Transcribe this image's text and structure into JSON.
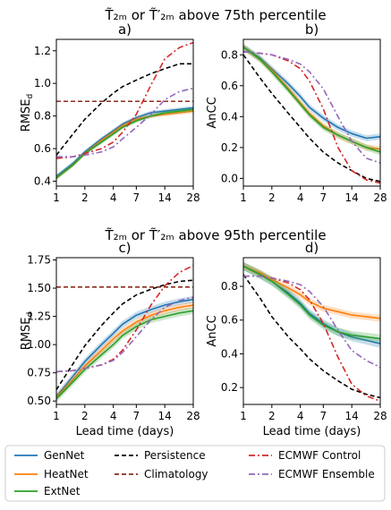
{
  "colors": {
    "genet": "#1f77b4",
    "heatnet": "#ff7f0e",
    "extnet": "#2ca02c",
    "persistence": "#000000",
    "climatology": "#8c2d1e",
    "ecmwf_control": "#d62728",
    "ecmwf_ensemble": "#9467bd"
  },
  "legend": [
    {
      "key": "genet",
      "label": "GenNet",
      "style": "solid"
    },
    {
      "key": "heatnet",
      "label": "HeatNet",
      "style": "solid"
    },
    {
      "key": "extnet",
      "label": "ExtNet",
      "style": "solid"
    },
    {
      "key": "persistence",
      "label": "Persistence",
      "style": "dash"
    },
    {
      "key": "climatology",
      "label": "Climatology",
      "style": "dash"
    },
    {
      "key": "ecmwf_control",
      "label": "ECMWF Control",
      "style": "dashdot"
    },
    {
      "key": "ecmwf_ensemble",
      "label": "ECMWF Ensemble",
      "style": "dashdot"
    }
  ],
  "row_titles": [
    "T̃₂ₘ or T̃′₂ₘ above 75th percentile",
    "T̃₂ₘ or T̃′₂ₘ above 95th percentile"
  ],
  "chart_data": [
    {
      "panel": "a)",
      "type": "line",
      "xscale": "log",
      "xticks": [
        1,
        2,
        4,
        7,
        14,
        28
      ],
      "xlim": [
        1,
        28
      ],
      "xlabel": "",
      "ylabel": "RMSE_d",
      "ylim": [
        0.37,
        1.27
      ],
      "yticks": [
        0.4,
        0.6,
        0.8,
        1.0,
        1.2
      ],
      "x": [
        1,
        1.5,
        2,
        3,
        4,
        5,
        7,
        10,
        14,
        20,
        28
      ],
      "series": [
        {
          "name": "GenNet",
          "key": "genet",
          "values": [
            0.43,
            0.51,
            0.58,
            0.66,
            0.71,
            0.75,
            0.79,
            0.82,
            0.83,
            0.84,
            0.85
          ],
          "band": 0.012
        },
        {
          "name": "HeatNet",
          "key": "heatnet",
          "values": [
            0.42,
            0.5,
            0.57,
            0.65,
            0.7,
            0.74,
            0.78,
            0.8,
            0.81,
            0.82,
            0.83
          ],
          "band": 0.012
        },
        {
          "name": "ExtNet",
          "key": "extnet",
          "values": [
            0.42,
            0.5,
            0.57,
            0.64,
            0.69,
            0.73,
            0.77,
            0.8,
            0.82,
            0.83,
            0.84
          ],
          "band": 0.012
        },
        {
          "name": "Persistence",
          "key": "persistence",
          "values": [
            0.56,
            0.69,
            0.78,
            0.88,
            0.94,
            0.98,
            1.02,
            1.06,
            1.09,
            1.12,
            1.12
          ]
        },
        {
          "name": "Climatology",
          "key": "climatology",
          "values": [
            0.89,
            0.89,
            0.89,
            0.89,
            0.89,
            0.89,
            0.89,
            0.89,
            0.89,
            0.89,
            0.89
          ]
        },
        {
          "name": "ECMWF Control",
          "key": "ecmwf_control",
          "values": [
            0.54,
            0.55,
            0.57,
            0.6,
            0.64,
            0.7,
            0.81,
            0.99,
            1.15,
            1.22,
            1.25
          ]
        },
        {
          "name": "ECMWF Ensemble",
          "key": "ecmwf_ensemble",
          "values": [
            0.55,
            0.55,
            0.56,
            0.58,
            0.61,
            0.66,
            0.73,
            0.81,
            0.9,
            0.95,
            0.97
          ]
        }
      ]
    },
    {
      "panel": "b)",
      "type": "line",
      "xscale": "log",
      "xticks": [
        1,
        2,
        4,
        7,
        14,
        28
      ],
      "xlim": [
        1,
        28
      ],
      "xlabel": "",
      "ylabel": "AnCC",
      "ylim": [
        -0.05,
        0.9
      ],
      "yticks": [
        0.0,
        0.2,
        0.4,
        0.6,
        0.8
      ],
      "x": [
        1,
        1.5,
        2,
        3,
        4,
        5,
        7,
        10,
        14,
        20,
        28
      ],
      "series": [
        {
          "name": "GenNet",
          "key": "genet",
          "values": [
            0.85,
            0.78,
            0.71,
            0.61,
            0.53,
            0.46,
            0.39,
            0.33,
            0.29,
            0.26,
            0.27
          ],
          "band": 0.02
        },
        {
          "name": "HeatNet",
          "key": "heatnet",
          "values": [
            0.85,
            0.77,
            0.7,
            0.58,
            0.49,
            0.42,
            0.34,
            0.28,
            0.24,
            0.2,
            0.19
          ],
          "band": 0.02
        },
        {
          "name": "ExtNet",
          "key": "extnet",
          "values": [
            0.85,
            0.77,
            0.69,
            0.57,
            0.48,
            0.41,
            0.33,
            0.28,
            0.24,
            0.2,
            0.17
          ],
          "band": 0.02
        },
        {
          "name": "Persistence",
          "key": "persistence",
          "values": [
            0.8,
            0.65,
            0.55,
            0.42,
            0.33,
            0.26,
            0.17,
            0.1,
            0.05,
            0.0,
            -0.02
          ]
        },
        {
          "name": "ECMWF Control",
          "key": "ecmwf_control",
          "values": [
            0.82,
            0.81,
            0.8,
            0.76,
            0.71,
            0.63,
            0.45,
            0.2,
            0.05,
            -0.01,
            -0.03
          ]
        },
        {
          "name": "ECMWF Ensemble",
          "key": "ecmwf_ensemble",
          "values": [
            0.82,
            0.81,
            0.8,
            0.77,
            0.74,
            0.69,
            0.58,
            0.4,
            0.24,
            0.13,
            0.1
          ]
        }
      ]
    },
    {
      "panel": "c)",
      "type": "line",
      "xscale": "log",
      "xticks": [
        1,
        2,
        4,
        7,
        14,
        28
      ],
      "xlim": [
        1,
        28
      ],
      "xlabel": "Lead time (days)",
      "ylabel": "RMSE_d",
      "ylim": [
        0.47,
        1.77
      ],
      "yticks": [
        0.5,
        0.75,
        1.0,
        1.25,
        1.5,
        1.75
      ],
      "x": [
        1,
        1.5,
        2,
        3,
        4,
        5,
        7,
        10,
        14,
        20,
        28
      ],
      "series": [
        {
          "name": "GenNet",
          "key": "genet",
          "values": [
            0.54,
            0.72,
            0.85,
            1.0,
            1.1,
            1.18,
            1.26,
            1.31,
            1.35,
            1.38,
            1.4
          ],
          "band": 0.03
        },
        {
          "name": "HeatNet",
          "key": "heatnet",
          "values": [
            0.53,
            0.69,
            0.81,
            0.95,
            1.05,
            1.12,
            1.2,
            1.26,
            1.3,
            1.33,
            1.35
          ],
          "band": 0.03
        },
        {
          "name": "ExtNet",
          "key": "extnet",
          "values": [
            0.52,
            0.67,
            0.78,
            0.91,
            1.0,
            1.08,
            1.16,
            1.22,
            1.25,
            1.28,
            1.3
          ],
          "band": 0.03
        },
        {
          "name": "Persistence",
          "key": "persistence",
          "values": [
            0.6,
            0.83,
            0.99,
            1.17,
            1.28,
            1.36,
            1.44,
            1.49,
            1.53,
            1.56,
            1.57
          ]
        },
        {
          "name": "Climatology",
          "key": "climatology",
          "values": [
            1.51,
            1.51,
            1.51,
            1.51,
            1.51,
            1.51,
            1.51,
            1.51,
            1.51,
            1.51,
            1.51
          ]
        },
        {
          "name": "ECMWF Control",
          "key": "ecmwf_control",
          "values": [
            0.76,
            0.77,
            0.79,
            0.82,
            0.87,
            0.95,
            1.13,
            1.35,
            1.52,
            1.64,
            1.7
          ]
        },
        {
          "name": "ECMWF Ensemble",
          "key": "ecmwf_ensemble",
          "values": [
            0.76,
            0.77,
            0.79,
            0.82,
            0.86,
            0.93,
            1.07,
            1.22,
            1.33,
            1.39,
            1.42
          ]
        }
      ]
    },
    {
      "panel": "d)",
      "type": "line",
      "xscale": "log",
      "xticks": [
        1,
        2,
        4,
        7,
        14,
        28
      ],
      "xlim": [
        1,
        28
      ],
      "xlabel": "Lead time (days)",
      "ylabel": "AnCC",
      "ylim": [
        0.1,
        0.97
      ],
      "yticks": [
        0.2,
        0.4,
        0.6,
        0.8
      ],
      "x": [
        1,
        1.5,
        2,
        3,
        4,
        5,
        7,
        10,
        14,
        20,
        28
      ],
      "series": [
        {
          "name": "GenNet",
          "key": "genet",
          "values": [
            0.92,
            0.87,
            0.83,
            0.76,
            0.7,
            0.64,
            0.58,
            0.53,
            0.5,
            0.48,
            0.46
          ],
          "band": 0.025
        },
        {
          "name": "HeatNet",
          "key": "heatnet",
          "values": [
            0.92,
            0.88,
            0.84,
            0.79,
            0.75,
            0.71,
            0.67,
            0.65,
            0.63,
            0.62,
            0.61
          ],
          "band": 0.02
        },
        {
          "name": "ExtNet",
          "key": "extnet",
          "values": [
            0.92,
            0.87,
            0.83,
            0.75,
            0.69,
            0.63,
            0.57,
            0.53,
            0.51,
            0.5,
            0.49
          ],
          "band": 0.025
        },
        {
          "name": "Persistence",
          "key": "persistence",
          "values": [
            0.87,
            0.73,
            0.62,
            0.5,
            0.43,
            0.37,
            0.3,
            0.24,
            0.19,
            0.16,
            0.14
          ]
        },
        {
          "name": "ECMWF Control",
          "key": "ecmwf_control",
          "values": [
            0.86,
            0.86,
            0.85,
            0.82,
            0.78,
            0.72,
            0.58,
            0.38,
            0.22,
            0.15,
            0.12
          ]
        },
        {
          "name": "ECMWF Ensemble",
          "key": "ecmwf_ensemble",
          "values": [
            0.86,
            0.86,
            0.85,
            0.83,
            0.81,
            0.77,
            0.68,
            0.54,
            0.42,
            0.36,
            0.32
          ]
        }
      ]
    }
  ]
}
